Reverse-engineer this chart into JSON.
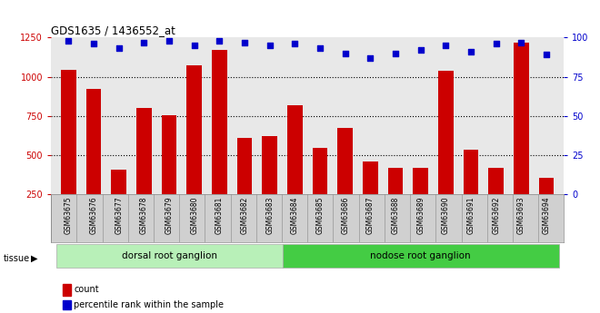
{
  "title": "GDS1635 / 1436552_at",
  "samples": [
    "GSM63675",
    "GSM63676",
    "GSM63677",
    "GSM63678",
    "GSM63679",
    "GSM63680",
    "GSM63681",
    "GSM63682",
    "GSM63683",
    "GSM63684",
    "GSM63685",
    "GSM63686",
    "GSM63687",
    "GSM63688",
    "GSM63689",
    "GSM63690",
    "GSM63691",
    "GSM63692",
    "GSM63693",
    "GSM63694"
  ],
  "counts": [
    1045,
    920,
    405,
    800,
    755,
    1075,
    1170,
    610,
    620,
    820,
    545,
    670,
    460,
    415,
    415,
    1040,
    535,
    415,
    1220,
    355
  ],
  "percentiles": [
    98,
    96,
    93,
    97,
    98,
    95,
    98,
    97,
    95,
    96,
    93,
    90,
    87,
    90,
    92,
    95,
    91,
    96,
    97,
    89
  ],
  "tissue_groups": [
    {
      "label": "dorsal root ganglion",
      "start": 0,
      "end": 9
    },
    {
      "label": "nodose root ganglion",
      "start": 9,
      "end": 20
    }
  ],
  "ylim_left": [
    250,
    1250
  ],
  "ylim_right": [
    0,
    100
  ],
  "yticks_left": [
    250,
    500,
    750,
    1000,
    1250
  ],
  "yticks_right": [
    0,
    25,
    50,
    75,
    100
  ],
  "grid_vals": [
    500,
    750,
    1000
  ],
  "bar_color": "#cc0000",
  "dot_color": "#0000cc",
  "grid_color": "#000000",
  "plot_bg": "#e8e8e8",
  "xticklabels_bg": "#d0d0d0",
  "left_axis_color": "#cc0000",
  "right_axis_color": "#0000cc",
  "tissue_label": "tissue",
  "tissue_color_1": "#b8f0b8",
  "tissue_color_2": "#44cc44",
  "legend_count_label": "count",
  "legend_pct_label": "percentile rank within the sample"
}
